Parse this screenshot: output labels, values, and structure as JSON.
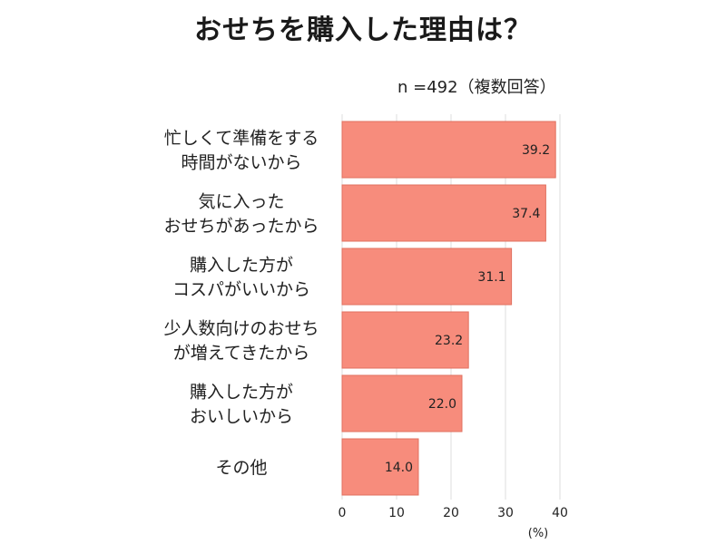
{
  "chart_data": {
    "type": "bar",
    "orientation": "horizontal",
    "title": "おせちを購入した理由は？",
    "note": "n =492（複数回答）",
    "categories": [
      [
        "忙しくて準備をする",
        "時間がないから"
      ],
      [
        "気に入った",
        "おせちがあったから"
      ],
      [
        "購入した方が",
        "コスパがいいから"
      ],
      [
        "少人数向けのおせち",
        "が増えてきたから"
      ],
      [
        "購入した方が",
        "おいしいから"
      ],
      [
        "その他"
      ]
    ],
    "values": [
      39.2,
      37.4,
      31.1,
      23.2,
      22.0,
      14.0
    ],
    "value_labels": [
      "39.2",
      "37.4",
      "31.1",
      "23.2",
      "22.0",
      "14.0"
    ],
    "xlim": [
      0,
      40
    ],
    "xticks": [
      0,
      10,
      20,
      30,
      40
    ],
    "xlabel": "(%)",
    "grid": "vertical",
    "colors": {
      "bar": "#f78c7c",
      "bar_stroke": "#e0705f",
      "grid": "#dcdcdc"
    }
  }
}
